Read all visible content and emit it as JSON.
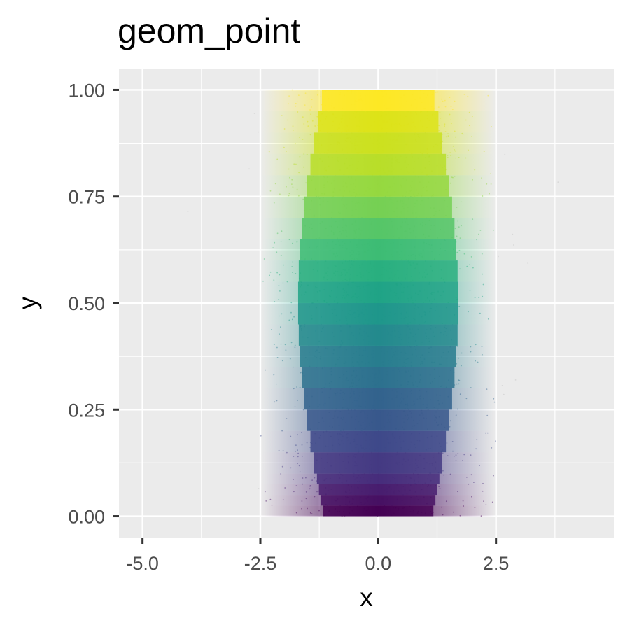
{
  "chart_data": {
    "type": "scatter",
    "title": "geom_point",
    "xlabel": "x",
    "ylabel": "y",
    "xlim": [
      -5.5,
      5.0
    ],
    "ylim": [
      -0.05,
      1.05
    ],
    "x_ticks": [
      -5.0,
      -2.5,
      0.0,
      2.5
    ],
    "x_tick_labels": [
      "-5.0",
      "-2.5",
      "0.0",
      "2.5"
    ],
    "y_ticks": [
      0.0,
      0.25,
      0.5,
      0.75,
      1.0
    ],
    "y_tick_labels": [
      "0.00",
      "0.25",
      "0.50",
      "0.75",
      "1.00"
    ],
    "grid": true,
    "legend": "none",
    "colormap": "viridis",
    "x_distribution": "normal",
    "x_mean": 0.0,
    "x_sd": 1.0,
    "x_truncation": 2.5,
    "bands": [
      {
        "y": [
          0.0,
          0.025
        ],
        "color": "#440154"
      },
      {
        "y": [
          0.025,
          0.05
        ],
        "color": "#471063"
      },
      {
        "y": [
          0.05,
          0.075
        ],
        "color": "#481d6f"
      },
      {
        "y": [
          0.075,
          0.1
        ],
        "color": "#472d7b"
      },
      {
        "y": [
          0.1,
          0.15
        ],
        "color": "#443a83"
      },
      {
        "y": [
          0.15,
          0.2
        ],
        "color": "#3e4989"
      },
      {
        "y": [
          0.2,
          0.25
        ],
        "color": "#38588c"
      },
      {
        "y": [
          0.25,
          0.3
        ],
        "color": "#33638d"
      },
      {
        "y": [
          0.3,
          0.35
        ],
        "color": "#2d718e"
      },
      {
        "y": [
          0.35,
          0.4
        ],
        "color": "#287d8e"
      },
      {
        "y": [
          0.4,
          0.45
        ],
        "color": "#238a8d"
      },
      {
        "y": [
          0.45,
          0.5
        ],
        "color": "#1f968b"
      },
      {
        "y": [
          0.5,
          0.55
        ],
        "color": "#20a386"
      },
      {
        "y": [
          0.55,
          0.6
        ],
        "color": "#29af7f"
      },
      {
        "y": [
          0.6,
          0.65
        ],
        "color": "#3dbc74"
      },
      {
        "y": [
          0.65,
          0.7
        ],
        "color": "#56c667"
      },
      {
        "y": [
          0.7,
          0.75
        ],
        "color": "#75d054"
      },
      {
        "y": [
          0.75,
          0.8
        ],
        "color": "#95d840"
      },
      {
        "y": [
          0.8,
          0.85
        ],
        "color": "#b8de29"
      },
      {
        "y": [
          0.85,
          0.9
        ],
        "color": "#cbe11e"
      },
      {
        "y": [
          0.9,
          0.95
        ],
        "color": "#dde318"
      },
      {
        "y": [
          0.95,
          1.0
        ],
        "color": "#fde725"
      }
    ]
  }
}
